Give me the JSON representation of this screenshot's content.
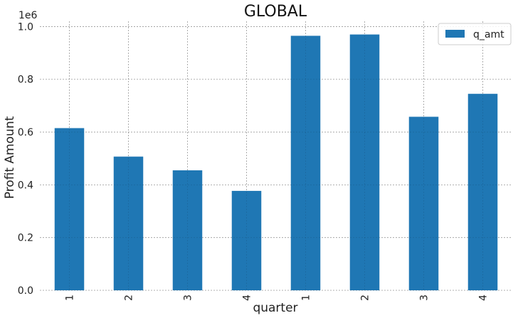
{
  "chart_data": {
    "type": "bar",
    "title": "GLOBAL",
    "xlabel": "quarter",
    "ylabel": "Profit Amount",
    "y_offset_label": "1e6",
    "categories": [
      "1",
      "2",
      "3",
      "4",
      "1",
      "2",
      "3",
      "4"
    ],
    "series": [
      {
        "name": "q_amt",
        "color": "#1f77b4",
        "values": [
          0.615,
          0.507,
          0.455,
          0.377,
          0.965,
          0.97,
          0.658,
          0.745
        ]
      }
    ],
    "yticks": [
      "0.0",
      "0.2",
      "0.4",
      "0.6",
      "0.8",
      "1.0"
    ],
    "ylim": [
      0,
      1.02
    ],
    "grid": true,
    "legend_position": "top-right"
  }
}
